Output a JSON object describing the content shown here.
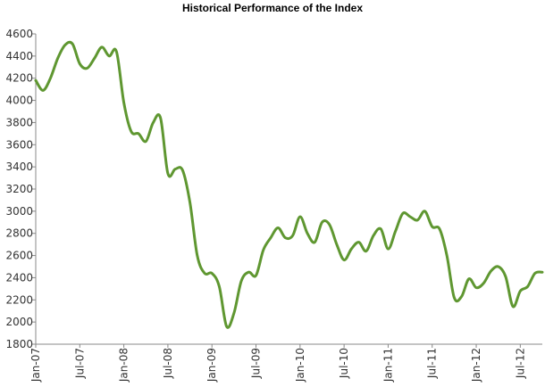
{
  "chart_data": {
    "type": "line",
    "title": "Historical Performance of the Index",
    "xlabel": "",
    "ylabel": "",
    "ylim": [
      1800,
      4600
    ],
    "xlim": [
      "2007-01",
      "2012-10"
    ],
    "grid": false,
    "line_color": "#5f9731",
    "y_ticks": [
      "1800",
      "2000",
      "2200",
      "2400",
      "2600",
      "2800",
      "3000",
      "3200",
      "3400",
      "3600",
      "3800",
      "4000",
      "4200",
      "4400",
      "4600"
    ],
    "x_ticks": [
      "Jan-07",
      "Jul-07",
      "Jan-08",
      "Jul-08",
      "Jan-09",
      "Jul-09",
      "Jan-10",
      "Jul-10",
      "Jan-11",
      "Jul-11",
      "Jan-12",
      "Jul-12"
    ],
    "x_tick_dates": [
      "2007-01",
      "2007-07",
      "2008-01",
      "2008-07",
      "2009-01",
      "2009-07",
      "2010-01",
      "2010-07",
      "2011-01",
      "2011-07",
      "2012-01",
      "2012-07"
    ],
    "series": [
      {
        "x": [
          "2007-01",
          "2007-02",
          "2007-03",
          "2007-04",
          "2007-05",
          "2007-06",
          "2007-07",
          "2007-08",
          "2007-09",
          "2007-10",
          "2007-11",
          "2007-12",
          "2008-01",
          "2008-02",
          "2008-03",
          "2008-04",
          "2008-05",
          "2008-06",
          "2008-07",
          "2008-08",
          "2008-09",
          "2008-10",
          "2008-11",
          "2008-12",
          "2009-01",
          "2009-02",
          "2009-03",
          "2009-04",
          "2009-05",
          "2009-06",
          "2009-07",
          "2009-08",
          "2009-09",
          "2009-10",
          "2009-11",
          "2009-12",
          "2010-01",
          "2010-02",
          "2010-03",
          "2010-04",
          "2010-05",
          "2010-06",
          "2010-07",
          "2010-08",
          "2010-09",
          "2010-10",
          "2010-11",
          "2010-12",
          "2011-01",
          "2011-02",
          "2011-03",
          "2011-04",
          "2011-05",
          "2011-06",
          "2011-07",
          "2011-08",
          "2011-09",
          "2011-10",
          "2011-11",
          "2011-12",
          "2012-01",
          "2012-02",
          "2012-03",
          "2012-04",
          "2012-05",
          "2012-06",
          "2012-07",
          "2012-08",
          "2012-09",
          "2012-10"
        ],
        "values": [
          4180,
          4090,
          4200,
          4380,
          4500,
          4510,
          4330,
          4290,
          4380,
          4480,
          4400,
          4440,
          3980,
          3720,
          3700,
          3630,
          3800,
          3840,
          3340,
          3380,
          3370,
          3080,
          2600,
          2440,
          2440,
          2320,
          1960,
          2080,
          2370,
          2450,
          2420,
          2650,
          2760,
          2850,
          2760,
          2780,
          2950,
          2800,
          2720,
          2900,
          2880,
          2700,
          2560,
          2660,
          2720,
          2640,
          2780,
          2840,
          2660,
          2820,
          2980,
          2950,
          2920,
          3000,
          2860,
          2840,
          2600,
          2220,
          2230,
          2390,
          2310,
          2350,
          2460,
          2500,
          2410,
          2140,
          2280,
          2320,
          2440,
          2450
        ]
      }
    ]
  }
}
